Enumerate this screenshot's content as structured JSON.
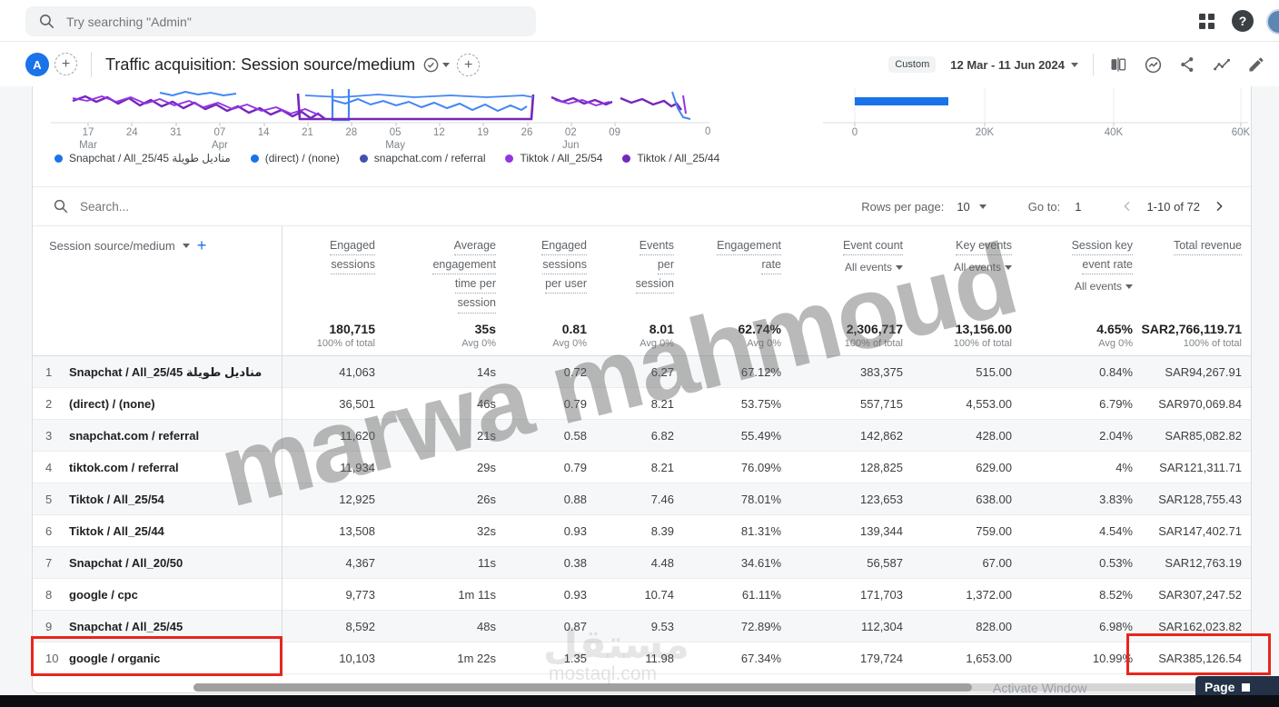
{
  "topbar": {
    "search_placeholder": "Try searching \"Admin\""
  },
  "header": {
    "avatar_letter": "A",
    "title": "Traffic acquisition: Session source/medium",
    "date_chip": "Custom",
    "date_range": "12 Mar - 11 Jun 2024"
  },
  "chart_data": [
    {
      "type": "line",
      "title": "Engaged sessions over time by session source/medium (bottom of chart visible, scrolled)",
      "x_ticks": [
        {
          "day": "17",
          "month": "Mar"
        },
        {
          "day": "24"
        },
        {
          "day": "31"
        },
        {
          "day": "07",
          "month": "Apr"
        },
        {
          "day": "14"
        },
        {
          "day": "21"
        },
        {
          "day": "28"
        },
        {
          "day": "05",
          "month": "May"
        },
        {
          "day": "12"
        },
        {
          "day": "19"
        },
        {
          "day": "26"
        },
        {
          "day": "02",
          "month": "Jun"
        },
        {
          "day": "09"
        }
      ],
      "y_label": "0",
      "series_colors": [
        "#1a73e8",
        "#4285f4",
        "#9334e6",
        "#7627bb"
      ],
      "legend_position": "bottom"
    },
    {
      "type": "bar",
      "orientation": "horizontal",
      "x_ticks": [
        "0",
        "20K",
        "40K",
        "60K"
      ],
      "xlim": [
        0,
        60000
      ],
      "visible_bar": {
        "value_approx": 14500,
        "color": "#1a73e8"
      }
    }
  ],
  "legend": {
    "items": [
      {
        "label": "Snapchat / All_25/45 مناديل طويلة",
        "color": "#1a73e8"
      },
      {
        "label": "(direct) / (none)",
        "color": "#1a73e8"
      },
      {
        "label": "snapchat.com / referral",
        "color": "#4350af"
      },
      {
        "label": "Tiktok / All_25/54",
        "color": "#9334e6"
      },
      {
        "label": "Tiktok / All_25/44",
        "color": "#7627bb"
      }
    ]
  },
  "table_controls": {
    "search_placeholder": "Search...",
    "rows_per_page_label": "Rows per page:",
    "rows_per_page_value": "10",
    "goto_label": "Go to:",
    "goto_value": "1",
    "range_label": "1-10 of 72"
  },
  "table": {
    "dimension_header": "Session source/medium",
    "columns": [
      {
        "lines": [
          "Engaged",
          "sessions"
        ]
      },
      {
        "lines": [
          "Average",
          "engagement",
          "time per",
          "session"
        ]
      },
      {
        "lines": [
          "Engaged",
          "sessions",
          "per user"
        ]
      },
      {
        "lines": [
          "Events",
          "per",
          "session"
        ]
      },
      {
        "lines": [
          "Engagement",
          "rate"
        ]
      },
      {
        "lines": [
          "Event count"
        ],
        "filter": "All events"
      },
      {
        "lines": [
          "Key events"
        ],
        "filter": "All events"
      },
      {
        "lines": [
          "Session key",
          "event rate"
        ],
        "filter": "All events"
      },
      {
        "lines": [
          "Total revenue"
        ]
      }
    ],
    "totals": [
      {
        "value": "180,715",
        "sub": "100% of total"
      },
      {
        "value": "35s",
        "sub": "Avg 0%"
      },
      {
        "value": "0.81",
        "sub": "Avg 0%"
      },
      {
        "value": "8.01",
        "sub": "Avg 0%"
      },
      {
        "value": "62.74%",
        "sub": "Avg 0%"
      },
      {
        "value": "2,306,717",
        "sub": "100% of total"
      },
      {
        "value": "13,156.00",
        "sub": "100% of total"
      },
      {
        "value": "4.65%",
        "sub": "Avg 0%"
      },
      {
        "value": "SAR2,766,119.71",
        "sub": "100% of total"
      }
    ],
    "rows": [
      {
        "num": "1",
        "name": "Snapchat / All_25/45 مناديل طويلة",
        "values": [
          "41,063",
          "14s",
          "0.72",
          "6.27",
          "67.12%",
          "383,375",
          "515.00",
          "0.84%",
          "SAR94,267.91"
        ]
      },
      {
        "num": "2",
        "name": "(direct) / (none)",
        "values": [
          "36,501",
          "46s",
          "0.79",
          "8.21",
          "53.75%",
          "557,715",
          "4,553.00",
          "6.79%",
          "SAR970,069.84"
        ]
      },
      {
        "num": "3",
        "name": "snapchat.com / referral",
        "values": [
          "11,620",
          "21s",
          "0.58",
          "6.82",
          "55.49%",
          "142,862",
          "428.00",
          "2.04%",
          "SAR85,082.82"
        ]
      },
      {
        "num": "4",
        "name": "tiktok.com / referral",
        "values": [
          "11,934",
          "29s",
          "0.79",
          "8.21",
          "76.09%",
          "128,825",
          "629.00",
          "4%",
          "SAR121,311.71"
        ]
      },
      {
        "num": "5",
        "name": "Tiktok / All_25/54",
        "values": [
          "12,925",
          "26s",
          "0.88",
          "7.46",
          "78.01%",
          "123,653",
          "638.00",
          "3.83%",
          "SAR128,755.43"
        ]
      },
      {
        "num": "6",
        "name": "Tiktok / All_25/44",
        "values": [
          "13,508",
          "32s",
          "0.93",
          "8.39",
          "81.31%",
          "139,344",
          "759.00",
          "4.54%",
          "SAR147,402.71"
        ]
      },
      {
        "num": "7",
        "name": "Snapchat / All_20/50",
        "values": [
          "4,367",
          "11s",
          "0.38",
          "4.48",
          "34.61%",
          "56,587",
          "67.00",
          "0.53%",
          "SAR12,763.19"
        ]
      },
      {
        "num": "8",
        "name": "google / cpc",
        "values": [
          "9,773",
          "1m 11s",
          "0.93",
          "10.74",
          "61.11%",
          "171,703",
          "1,372.00",
          "8.52%",
          "SAR307,247.52"
        ]
      },
      {
        "num": "9",
        "name": "Snapchat / All_25/45",
        "values": [
          "8,592",
          "48s",
          "0.87",
          "9.53",
          "72.89%",
          "112,304",
          "828.00",
          "6.98%",
          "SAR162,023.82"
        ]
      },
      {
        "num": "10",
        "name": "google / organic",
        "values": [
          "10,103",
          "1m 22s",
          "1.35",
          "11.98",
          "67.34%",
          "179,724",
          "1,653.00",
          "10.99%",
          "SAR385,126.54"
        ]
      }
    ]
  },
  "watermarks": {
    "main": "marwa mahmoud",
    "logo_arabic": "مستقل",
    "logo_domain": "mostaql.com"
  },
  "footer": {
    "activate_text": "Activate Window",
    "page_badge": "Page"
  },
  "colors": {
    "accent_blue": "#1a73e8",
    "highlight_red": "#e8261d",
    "bar_color": "#1a73e8"
  }
}
